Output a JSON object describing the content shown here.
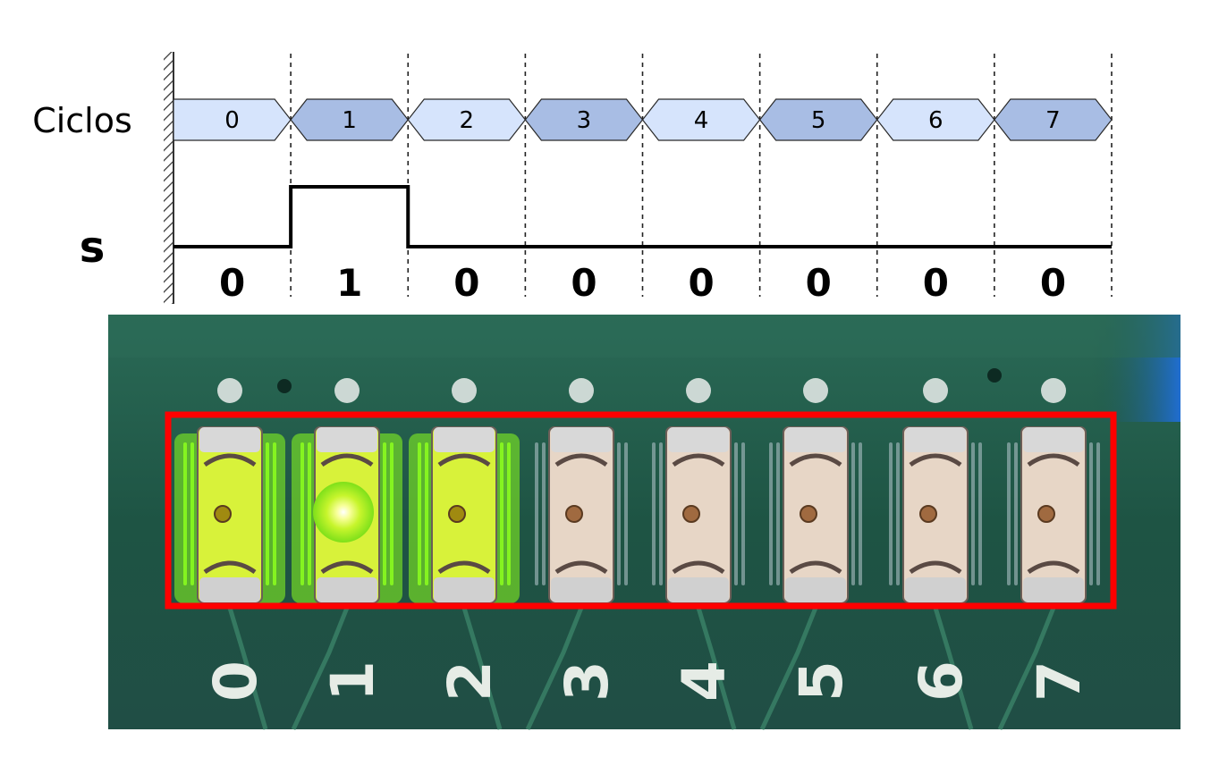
{
  "timing": {
    "cycles_label": "Ciclos",
    "signal_label": "s",
    "cycles": [
      "0",
      "1",
      "2",
      "3",
      "4",
      "5",
      "6",
      "7"
    ],
    "signal_levels": [
      0,
      1,
      0,
      0,
      0,
      0,
      0,
      0
    ],
    "values": [
      "0",
      "1",
      "0",
      "0",
      "0",
      "0",
      "0",
      "0"
    ],
    "colors": {
      "cycle_even": "#d6e4fc",
      "cycle_odd": "#a8bde4",
      "outline": "#2a2a2a",
      "signal": "#000000"
    }
  },
  "board": {
    "silkscreen": [
      "0",
      "1",
      "2",
      "3",
      "4",
      "5",
      "6",
      "7"
    ],
    "leds_on": [
      true,
      true,
      true,
      false,
      false,
      false,
      false,
      false
    ],
    "colors": {
      "pcb": "#1f5a45",
      "led_body": "#e7d6c6",
      "led_lit": "#d8f23a",
      "glow": "#8cff1e",
      "highlight_box": "#ff0000",
      "silk": "#e6ece6"
    }
  }
}
